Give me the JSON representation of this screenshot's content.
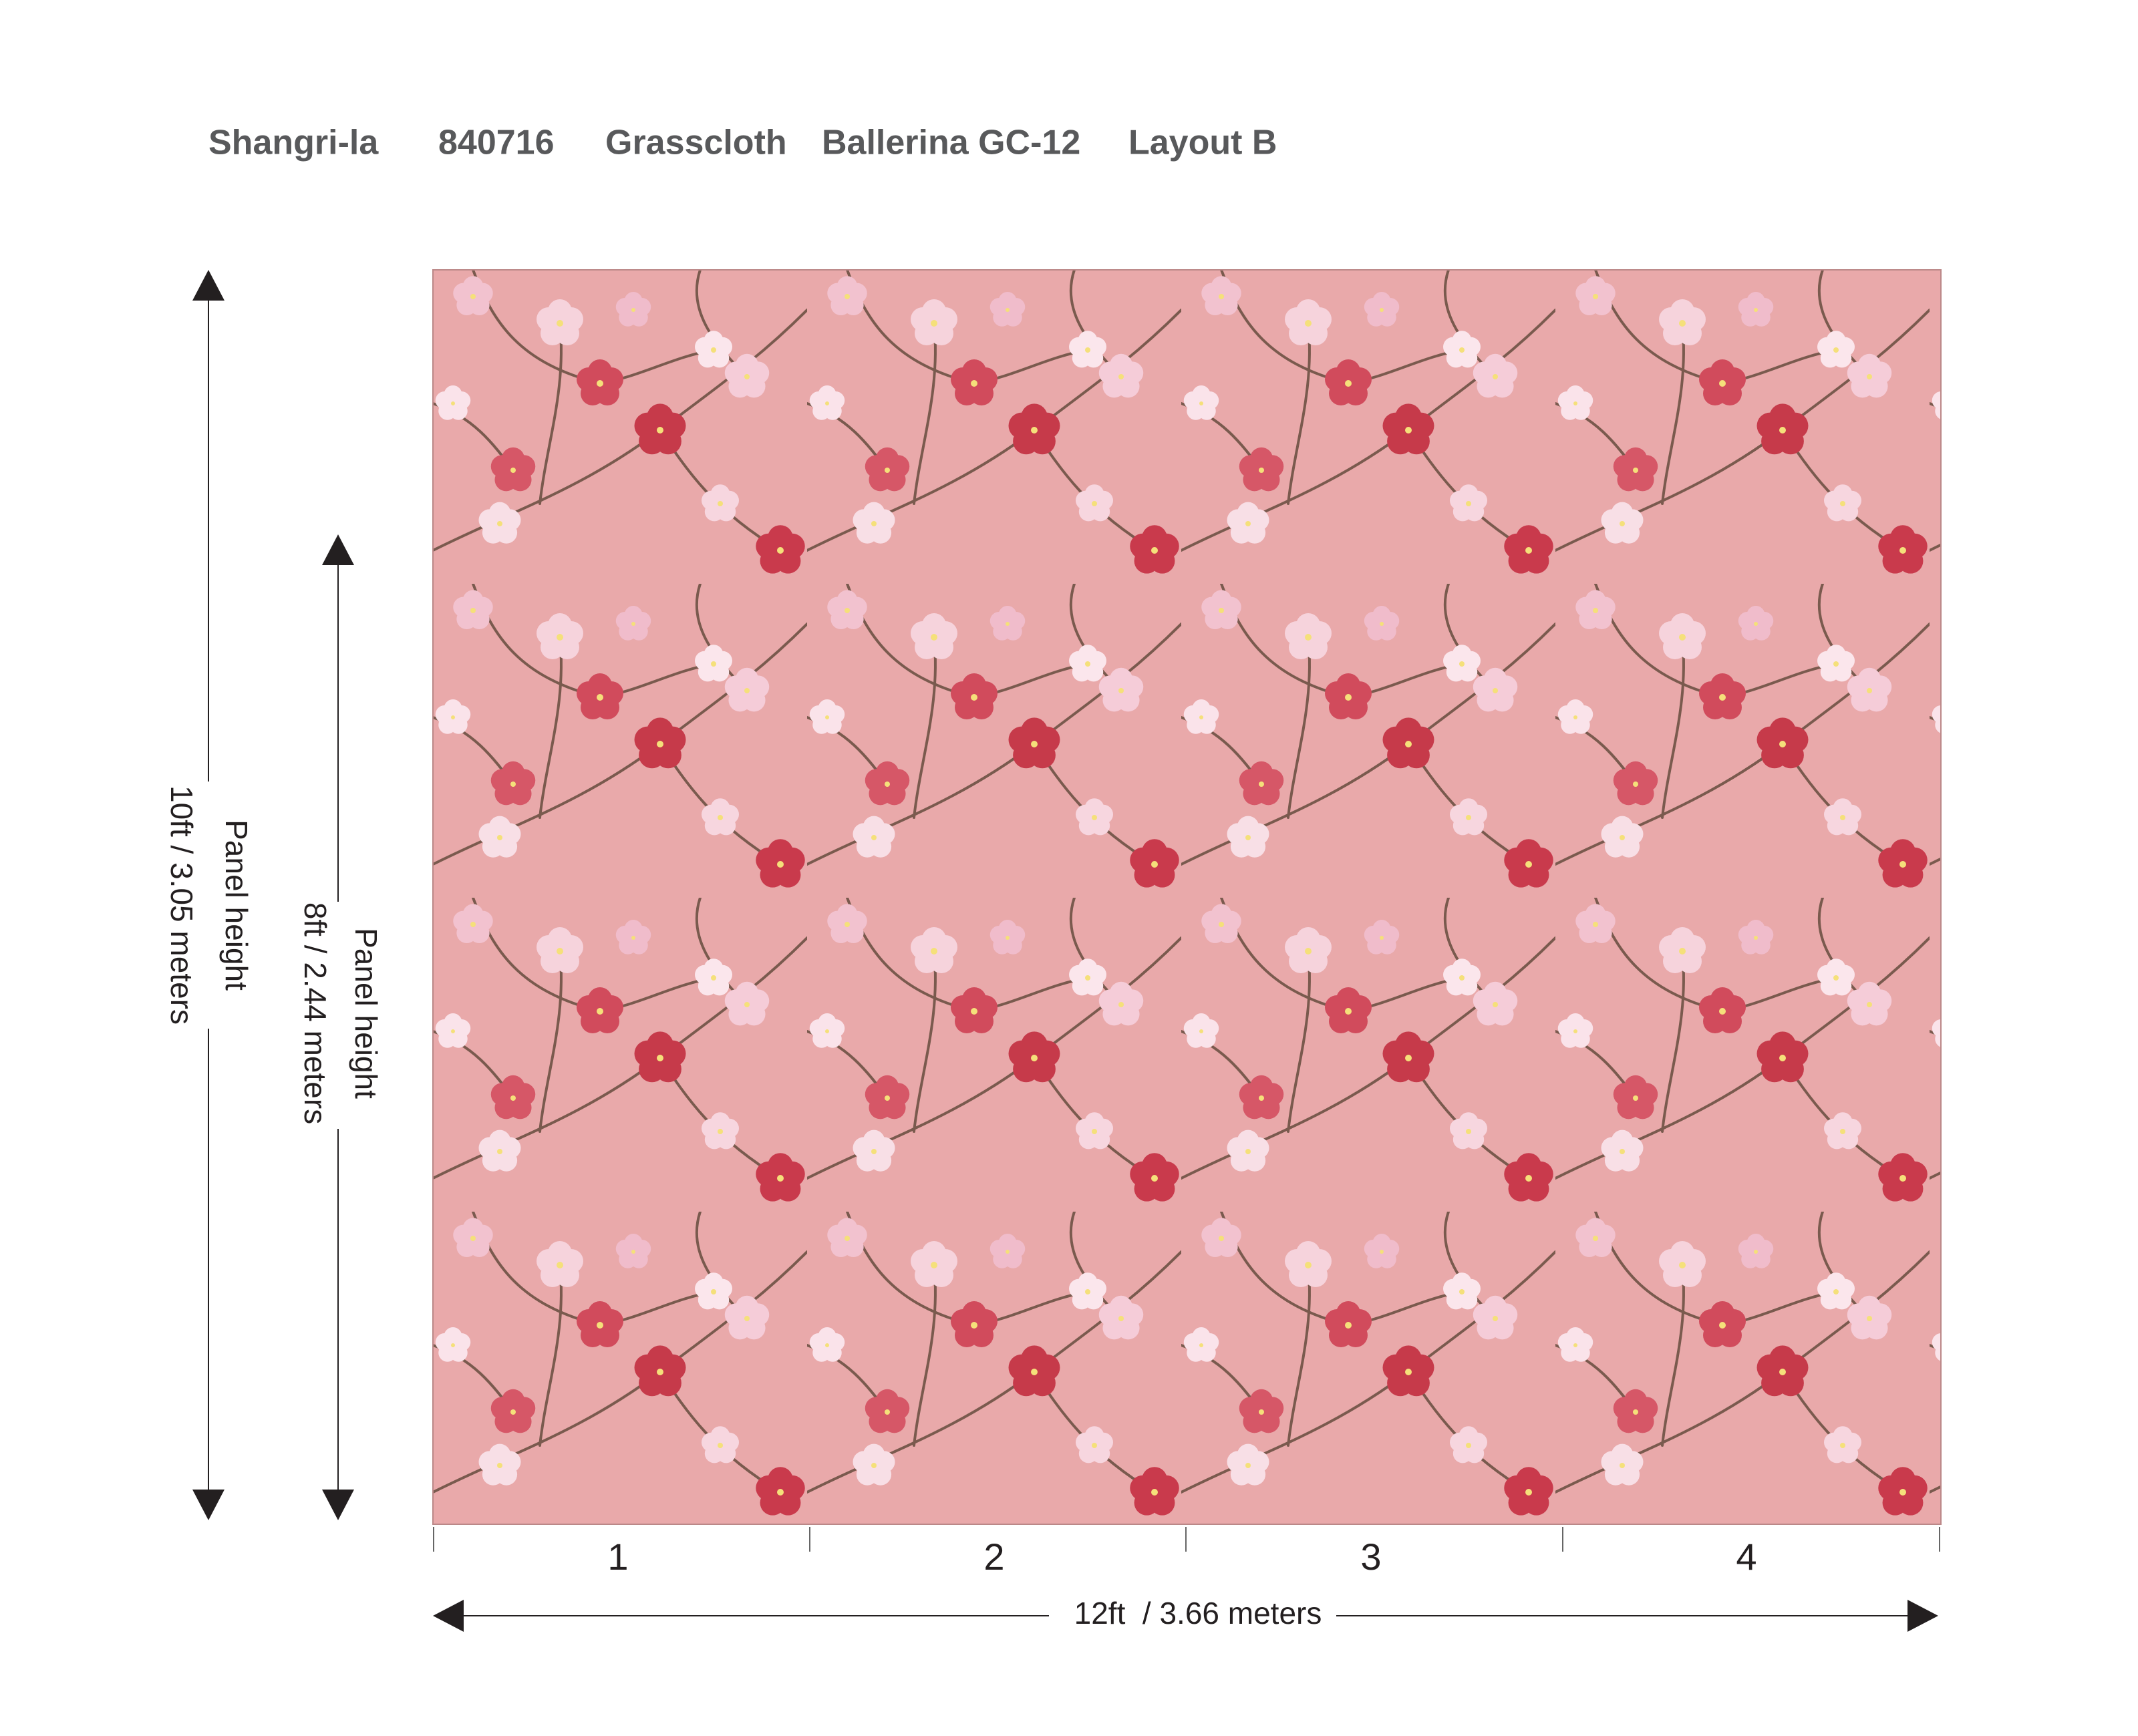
{
  "header": {
    "items": [
      "Shangri-la",
      "840716",
      "Grasscloth",
      "Ballerina GC-12",
      "Layout B"
    ]
  },
  "dimensions": {
    "outer_height": {
      "label": "Panel height",
      "size": "10ft / 3.05 meters"
    },
    "inner_height": {
      "label": "Panel height",
      "size": "8ft / 2.44 meters"
    },
    "width": "12ft  / 3.66 meters",
    "panels": [
      "1",
      "2",
      "3",
      "4"
    ]
  }
}
